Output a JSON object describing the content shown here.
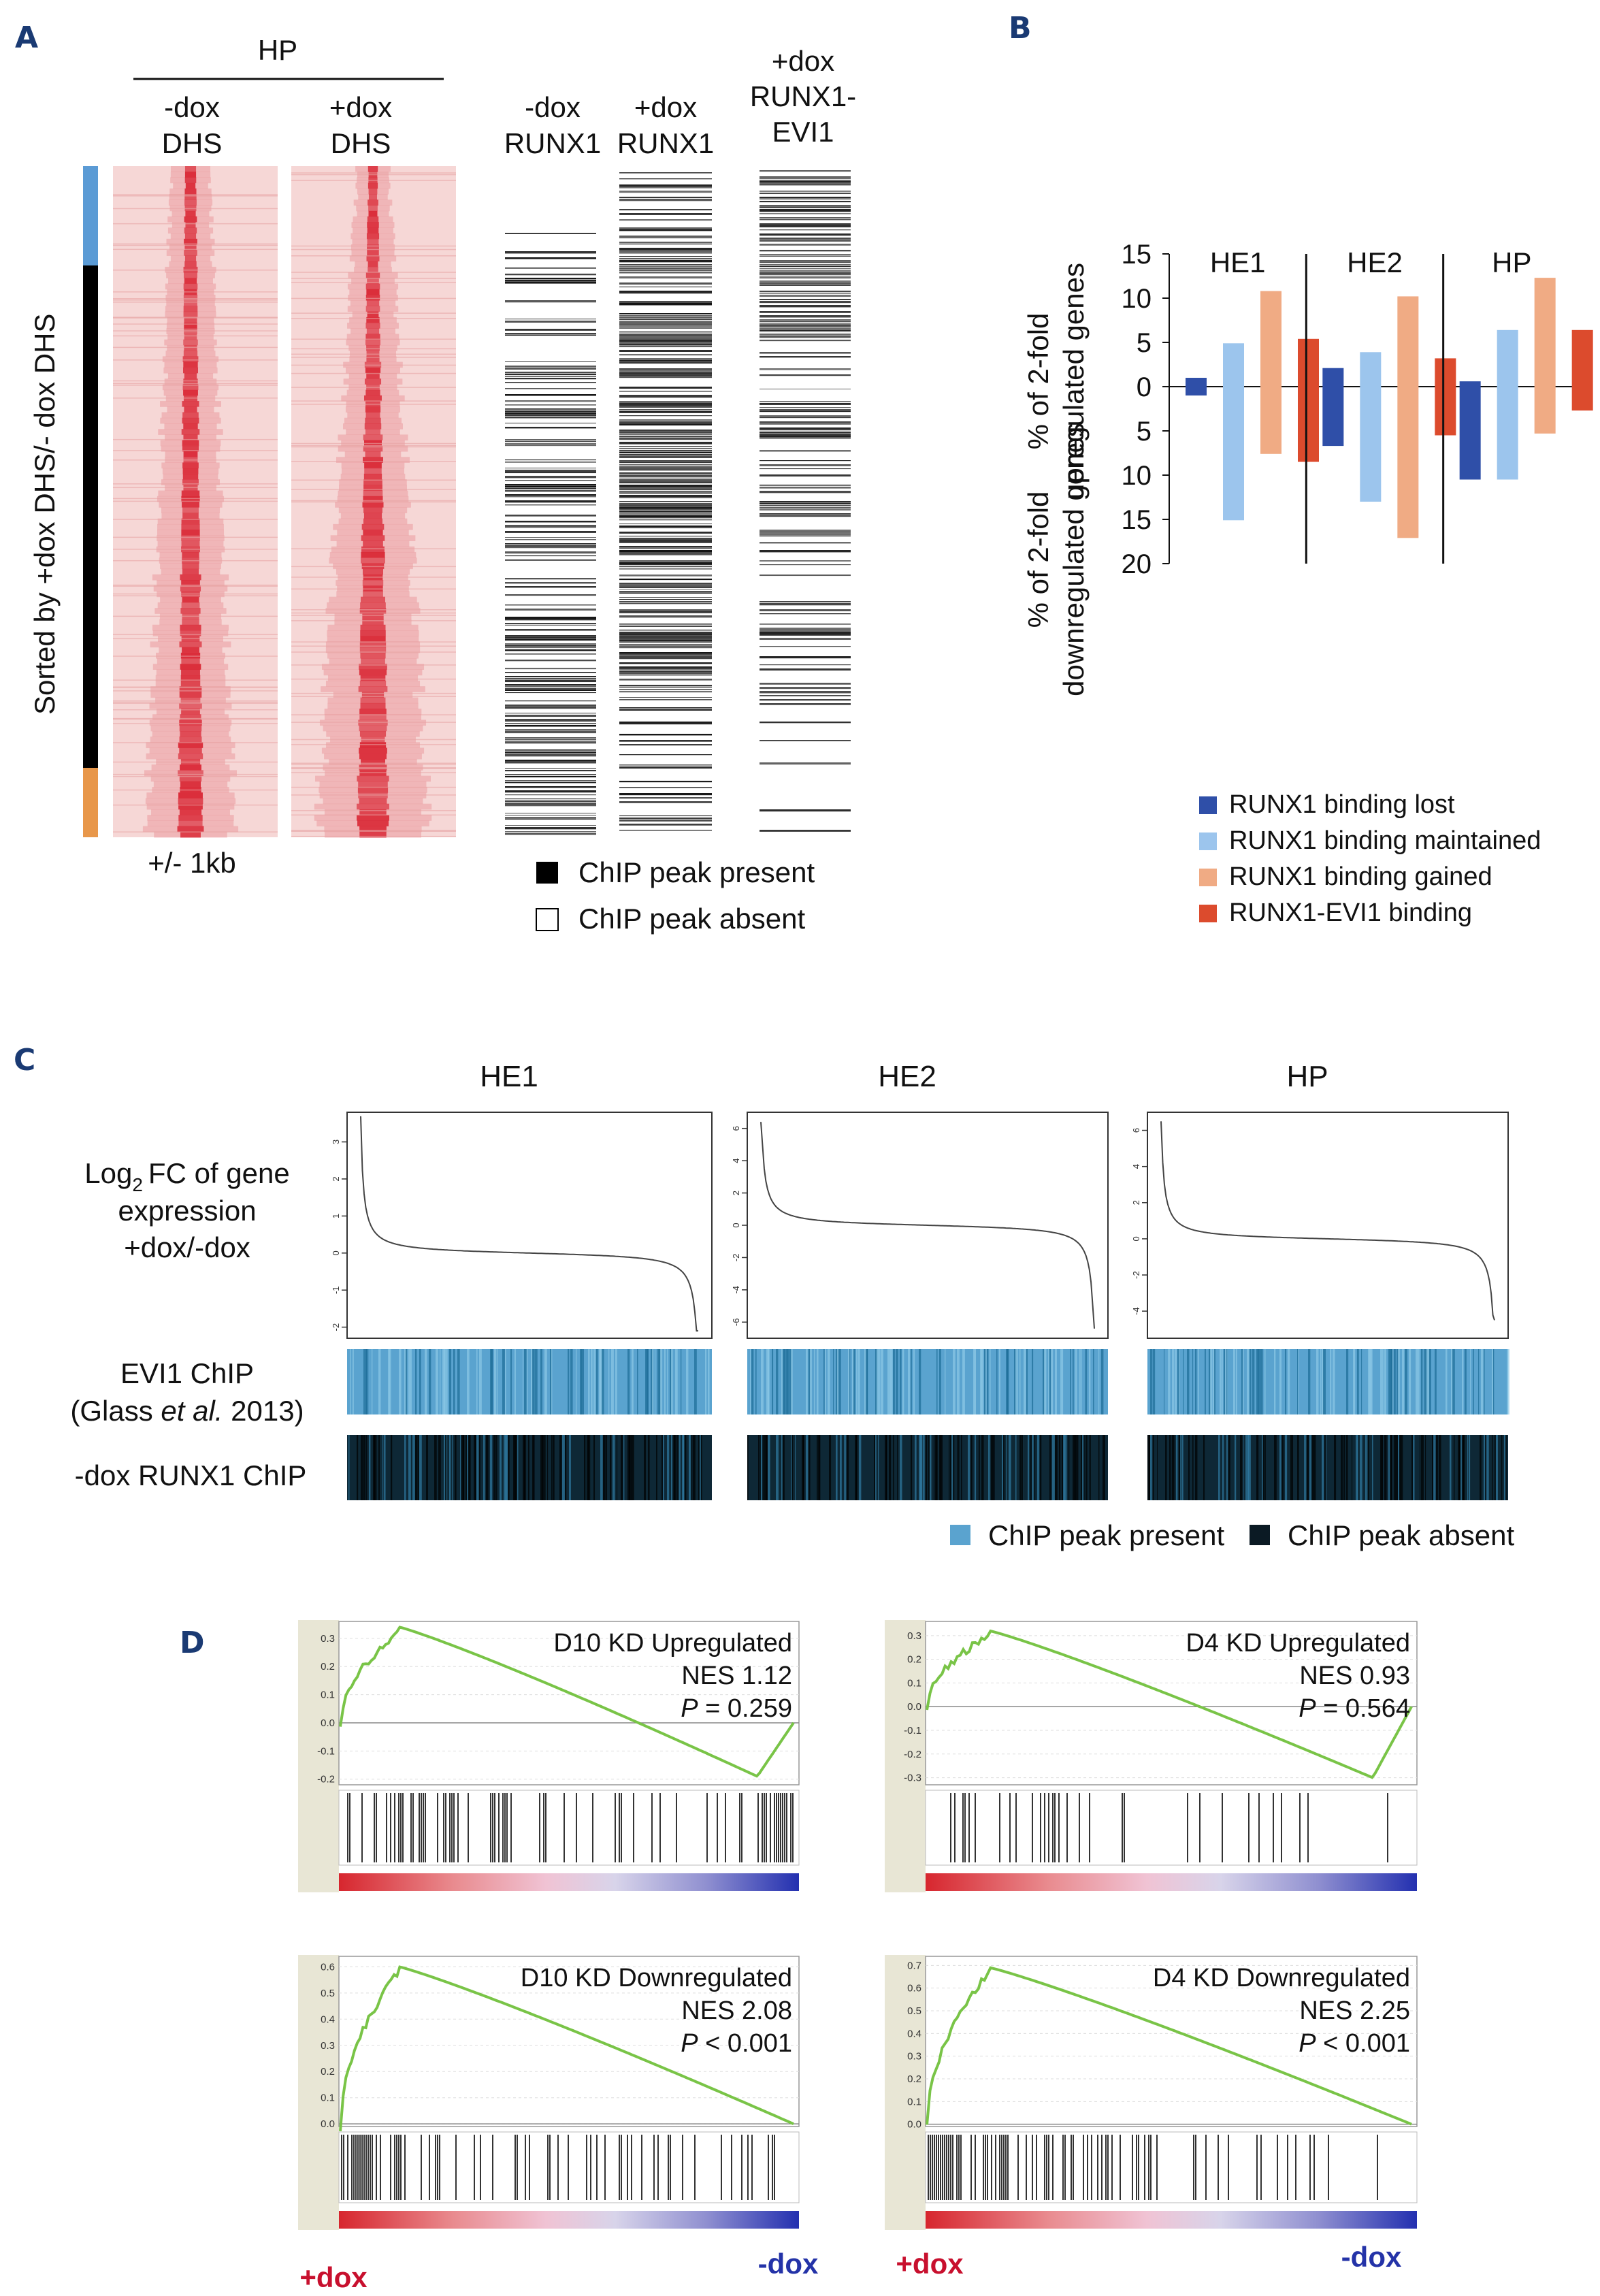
{
  "panel_labels": {
    "A": "A",
    "B": "B",
    "C": "C",
    "D": "D"
  },
  "panel_a": {
    "header": "HP",
    "col_minus_dhs": [
      "-dox",
      "DHS"
    ],
    "col_plus_dhs": [
      "+dox",
      "DHS"
    ],
    "col_minus_runx1": [
      "-dox",
      "RUNX1"
    ],
    "col_plus_runx1": [
      "+dox",
      "RUNX1"
    ],
    "col_plus_runx1_evi1": [
      "+dox",
      "RUNX1-",
      "EVI1"
    ],
    "side_label": "Sorted by +dox DHS/- dox DHS",
    "bottom_label": "+/- 1kb",
    "legend_present": "ChIP peak present",
    "legend_absent": "ChIP peak absent",
    "side_colors": {
      "top": "#5b9bd5",
      "middle": "#000000",
      "bottom": "#e8974a"
    },
    "heat_color": "#d81e2c"
  },
  "chart_data": [
    {
      "type": "bar",
      "panel": "B",
      "title": "",
      "groups": [
        "HE1",
        "HE2",
        "HP"
      ],
      "ylabel_up": [
        "% of 2-fold",
        "upregulated genes"
      ],
      "ylabel_down": [
        "% of 2-fold",
        "downregulated genes"
      ],
      "up_ticks": [
        "15",
        "10",
        "5",
        "0"
      ],
      "down_ticks": [
        "5",
        "10",
        "15",
        "20"
      ],
      "ylim_up": [
        0,
        15
      ],
      "ylim_down": [
        0,
        20
      ],
      "series": [
        {
          "name": "RUNX1 binding lost",
          "color": "#2f4fa8",
          "up": [
            1.0,
            2.1,
            0.6
          ],
          "down": [
            1.0,
            6.7,
            10.5
          ]
        },
        {
          "name": "RUNX1 binding maintained",
          "color": "#9cc5ed",
          "up": [
            4.9,
            3.9,
            6.4
          ],
          "down": [
            15.1,
            13.0,
            10.5
          ]
        },
        {
          "name": "RUNX1 binding gained",
          "color": "#f0ab84",
          "up": [
            10.8,
            10.2,
            12.3
          ],
          "down": [
            7.6,
            17.1,
            5.3
          ]
        },
        {
          "name": "RUNX1-EVI1 binding",
          "color": "#dc4b2d",
          "up": [
            5.4,
            3.2,
            6.4
          ],
          "down": [
            8.5,
            5.5,
            2.7
          ]
        }
      ]
    },
    {
      "type": "line",
      "panel": "C",
      "row_labels": {
        "log2": "FC of gene",
        "log2_prefix": "Log",
        "log2_sub": "2",
        "line2": "expression",
        "line3": "+dox/-dox",
        "evi1_a": "EVI1 ChIP",
        "evi1_b_pre": "(Glass ",
        "evi1_b_it": "et al.",
        "evi1_b_post": " 2013)",
        "runx1": "-dox RUNX1 ChIP"
      },
      "legend_present": "ChIP peak present",
      "legend_absent": "ChIP peak absent",
      "series": [
        {
          "name": "HE1",
          "yticks": [
            "-2",
            "-1",
            "0",
            "1",
            "2",
            "3"
          ],
          "ylim": [
            -2.3,
            3.8
          ],
          "start": 3.7,
          "end": -2.1
        },
        {
          "name": "HE2",
          "yticks": [
            "-6",
            "-4",
            "-2",
            "0",
            "2",
            "4",
            "6"
          ],
          "ylim": [
            -7,
            7
          ],
          "start": 6.4,
          "end": -6.4
        },
        {
          "name": "HP",
          "yticks": [
            "-4",
            "-2",
            "0",
            "2",
            "4",
            "6"
          ],
          "ylim": [
            -5.5,
            7
          ],
          "start": 6.5,
          "end": -4.5
        }
      ],
      "colors": {
        "present": "#5aa3cf",
        "absent": "#0b1a24"
      }
    },
    {
      "type": "line",
      "panel": "D",
      "x_left_label": "+dox",
      "x_right_label": "-dox",
      "colors": {
        "curve": "#79c447",
        "left": "#c8102e",
        "right": "#2433a8"
      },
      "series": [
        {
          "title": "D10 KD Upregulated",
          "nes": "NES 1.12",
          "p_label": "P",
          "p_value": " = 0.259",
          "yticks": [
            "0.3",
            "0.2",
            "0.1",
            "0.0",
            "-0.1",
            "-0.2"
          ],
          "ylim": [
            -0.22,
            0.36
          ],
          "peak": 0.34,
          "trough": -0.19
        },
        {
          "title": "D4 KD Upregulated",
          "nes": "NES 0.93",
          "p_label": "P",
          "p_value": " = 0.564",
          "yticks": [
            "0.3",
            "0.2",
            "0.1",
            "0.0",
            "-0.1",
            "-0.2",
            "-0.3"
          ],
          "ylim": [
            -0.33,
            0.36
          ],
          "peak": 0.32,
          "trough": -0.3
        },
        {
          "title": "D10 KD Downregulated",
          "nes": "NES 2.08",
          "p_label": "P",
          "p_value": " < 0.001",
          "yticks": [
            "0.6",
            "0.5",
            "0.4",
            "0.3",
            "0.2",
            "0.1",
            "0.0"
          ],
          "ylim": [
            -0.01,
            0.64
          ],
          "peak": 0.6,
          "trough": 0.0
        },
        {
          "title": "D4 KD Downregulated",
          "nes": "NES 2.25",
          "p_label": "P",
          "p_value": " < 0.001",
          "yticks": [
            "0.7",
            "0.6",
            "0.5",
            "0.4",
            "0.3",
            "0.2",
            "0.1",
            "0.0"
          ],
          "ylim": [
            -0.01,
            0.74
          ],
          "peak": 0.69,
          "trough": 0.0
        }
      ]
    }
  ]
}
